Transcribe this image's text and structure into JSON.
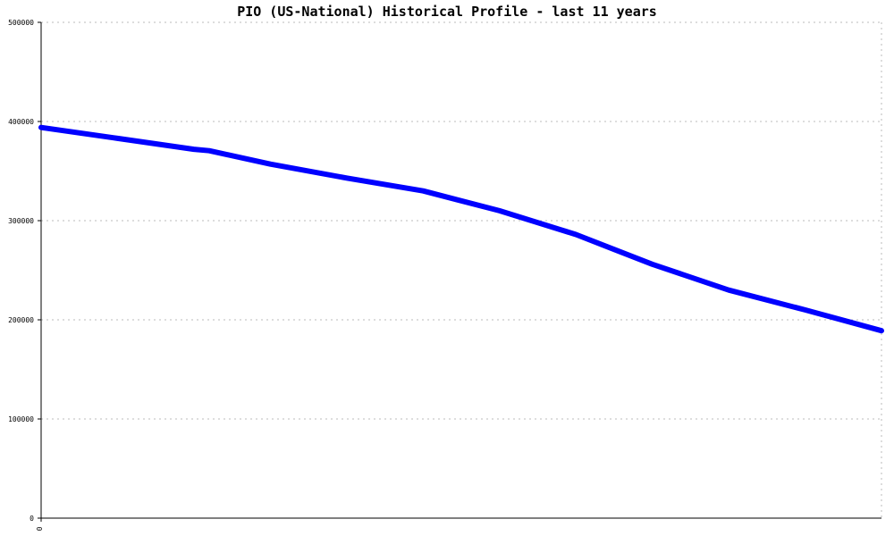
{
  "chart_data": {
    "type": "line",
    "title": "PIO (US-National) Historical Profile - last 11 years",
    "xlabel": "",
    "ylabel": "",
    "ylim": [
      0,
      500000
    ],
    "y_ticks": [
      {
        "value": 0,
        "label": "0"
      },
      {
        "value": 100000,
        "label": "100000"
      },
      {
        "value": 200000,
        "label": "200000"
      },
      {
        "value": 300000,
        "label": "300000"
      },
      {
        "value": 400000,
        "label": "400000"
      },
      {
        "value": 500000,
        "label": "500000"
      }
    ],
    "x_ticks": [
      {
        "value": 0,
        "label": "0"
      }
    ],
    "xlim": [
      0,
      11
    ],
    "grid": true,
    "series": [
      {
        "color": "#0000ff",
        "x": [
          0,
          1,
          2,
          2.2,
          3,
          4,
          5,
          6,
          7,
          7.5,
          8,
          9,
          10,
          11
        ],
        "y": [
          394000,
          383000,
          372000,
          370500,
          357000,
          343000,
          330000,
          310000,
          286000,
          271000,
          256000,
          230000,
          210000,
          189000
        ]
      }
    ]
  }
}
